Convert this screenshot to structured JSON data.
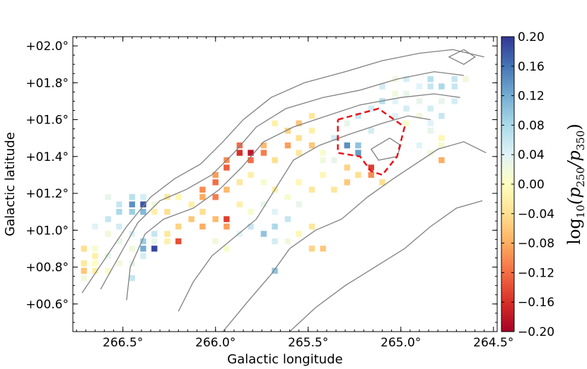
{
  "chart_data": {
    "type": "heatmap",
    "xlabel": "Galactic longitude",
    "ylabel": "Galactic latitude",
    "x_axis_reversed": true,
    "xlim": [
      266.77,
      264.48
    ],
    "ylim": [
      0.45,
      2.05
    ],
    "x_ticks": [
      {
        "value": 266.5,
        "label": "266.5°"
      },
      {
        "value": 266.0,
        "label": "266.0°"
      },
      {
        "value": 265.5,
        "label": "265.5°"
      },
      {
        "value": 265.0,
        "label": "265.0°"
      },
      {
        "value": 264.5,
        "label": "264.5°"
      }
    ],
    "y_ticks": [
      {
        "value": 0.6,
        "label": "+00.6°"
      },
      {
        "value": 0.8,
        "label": "+00.8°"
      },
      {
        "value": 1.0,
        "label": "+01.0°"
      },
      {
        "value": 1.2,
        "label": "+01.2°"
      },
      {
        "value": 1.4,
        "label": "+01.4°"
      },
      {
        "value": 1.6,
        "label": "+01.6°"
      },
      {
        "value": 1.8,
        "label": "+01.8°"
      },
      {
        "value": 2.0,
        "label": "+02.0°"
      }
    ],
    "colorbar": {
      "label_prefix": "log",
      "label_sub": "10",
      "label_expr": "(p",
      "label_sub2": "250",
      "label_mid": "/p",
      "label_sub3": "350",
      "label_end": ")",
      "colormap": "RdYlBu",
      "range": [
        -0.2,
        0.2
      ],
      "ticks": [
        {
          "value": 0.2,
          "label": "0.20"
        },
        {
          "value": 0.16,
          "label": "0.16"
        },
        {
          "value": 0.12,
          "label": "0.12"
        },
        {
          "value": 0.08,
          "label": "0.08"
        },
        {
          "value": 0.04,
          "label": "0.04"
        },
        {
          "value": 0.0,
          "label": "0.00"
        },
        {
          "value": -0.04,
          "label": "−0.04"
        },
        {
          "value": -0.08,
          "label": "−0.08"
        },
        {
          "value": -0.12,
          "label": "−0.12"
        },
        {
          "value": -0.16,
          "label": "−0.16"
        },
        {
          "value": -0.2,
          "label": "−0.20"
        }
      ]
    },
    "cell_size_deg": [
      0.0322,
      0.0322
    ],
    "cells": [
      {
        "l": 264.71,
        "b": 1.78,
        "v": 0.06
      },
      {
        "l": 264.78,
        "b": 1.78,
        "v": 0.08
      },
      {
        "l": 264.84,
        "b": 1.78,
        "v": 0.06
      },
      {
        "l": 264.9,
        "b": 1.78,
        "v": 0.04
      },
      {
        "l": 264.97,
        "b": 1.74,
        "v": 0.03
      },
      {
        "l": 265.03,
        "b": 1.74,
        "v": 0.02
      },
      {
        "l": 265.03,
        "b": 1.7,
        "v": 0.04
      },
      {
        "l": 265.1,
        "b": 1.7,
        "v": 0.07
      },
      {
        "l": 265.16,
        "b": 1.66,
        "v": 0.05
      },
      {
        "l": 264.78,
        "b": 1.7,
        "v": 0.03
      },
      {
        "l": 264.84,
        "b": 1.66,
        "v": 0.05
      },
      {
        "l": 264.9,
        "b": 1.62,
        "v": 0.02
      },
      {
        "l": 264.97,
        "b": 1.58,
        "v": 0.01
      },
      {
        "l": 264.84,
        "b": 1.54,
        "v": 0.03
      },
      {
        "l": 264.78,
        "b": 1.5,
        "v": -0.01
      },
      {
        "l": 264.84,
        "b": 1.42,
        "v": 0.02
      },
      {
        "l": 264.78,
        "b": 1.38,
        "v": -0.08
      },
      {
        "l": 264.9,
        "b": 1.46,
        "v": 0.04
      },
      {
        "l": 265.23,
        "b": 1.62,
        "v": 0.06
      },
      {
        "l": 265.29,
        "b": 1.58,
        "v": 0.03
      },
      {
        "l": 265.16,
        "b": 1.54,
        "v": 0.05
      },
      {
        "l": 265.23,
        "b": 1.46,
        "v": 0.1
      },
      {
        "l": 265.23,
        "b": 1.42,
        "v": 0.13
      },
      {
        "l": 265.29,
        "b": 1.46,
        "v": 0.14
      },
      {
        "l": 265.36,
        "b": 1.5,
        "v": 0.05
      },
      {
        "l": 265.16,
        "b": 1.34,
        "v": -0.15
      },
      {
        "l": 265.16,
        "b": 1.3,
        "v": -0.1
      },
      {
        "l": 265.1,
        "b": 1.26,
        "v": -0.04
      },
      {
        "l": 265.29,
        "b": 1.26,
        "v": -0.06
      },
      {
        "l": 265.36,
        "b": 1.22,
        "v": -0.03
      },
      {
        "l": 265.42,
        "b": 1.3,
        "v": -0.01
      },
      {
        "l": 265.42,
        "b": 1.38,
        "v": 0.02
      },
      {
        "l": 265.48,
        "b": 1.54,
        "v": -0.02
      },
      {
        "l": 265.48,
        "b": 1.62,
        "v": -0.03
      },
      {
        "l": 265.55,
        "b": 1.58,
        "v": -0.06
      },
      {
        "l": 265.55,
        "b": 1.5,
        "v": -0.04
      },
      {
        "l": 265.61,
        "b": 1.46,
        "v": -0.09
      },
      {
        "l": 265.61,
        "b": 1.54,
        "v": -0.05
      },
      {
        "l": 265.68,
        "b": 1.58,
        "v": -0.02
      },
      {
        "l": 265.74,
        "b": 1.46,
        "v": -0.07
      },
      {
        "l": 265.74,
        "b": 1.42,
        "v": -0.11
      },
      {
        "l": 265.68,
        "b": 1.38,
        "v": -0.04
      },
      {
        "l": 265.81,
        "b": 1.42,
        "v": -0.18
      },
      {
        "l": 265.81,
        "b": 1.38,
        "v": -0.12
      },
      {
        "l": 265.87,
        "b": 1.46,
        "v": -0.12
      },
      {
        "l": 265.87,
        "b": 1.42,
        "v": -0.16
      },
      {
        "l": 265.94,
        "b": 1.38,
        "v": -0.1
      },
      {
        "l": 265.94,
        "b": 1.34,
        "v": -0.13
      },
      {
        "l": 266.0,
        "b": 1.3,
        "v": -0.09
      },
      {
        "l": 266.0,
        "b": 1.26,
        "v": -0.12
      },
      {
        "l": 266.07,
        "b": 1.22,
        "v": -0.1
      },
      {
        "l": 266.07,
        "b": 1.18,
        "v": -0.08
      },
      {
        "l": 266.0,
        "b": 1.18,
        "v": -0.11
      },
      {
        "l": 265.94,
        "b": 1.22,
        "v": -0.07
      },
      {
        "l": 265.87,
        "b": 1.26,
        "v": -0.03
      },
      {
        "l": 265.81,
        "b": 1.3,
        "v": -0.02
      },
      {
        "l": 265.74,
        "b": 1.26,
        "v": 0.01
      },
      {
        "l": 265.68,
        "b": 1.22,
        "v": -0.02
      },
      {
        "l": 265.61,
        "b": 1.18,
        "v": 0.01
      },
      {
        "l": 265.55,
        "b": 1.26,
        "v": -0.01
      },
      {
        "l": 265.48,
        "b": 1.22,
        "v": -0.03
      },
      {
        "l": 265.55,
        "b": 1.14,
        "v": 0.03
      },
      {
        "l": 265.61,
        "b": 1.06,
        "v": 0.06
      },
      {
        "l": 265.68,
        "b": 1.02,
        "v": 0.08
      },
      {
        "l": 265.74,
        "b": 0.98,
        "v": 0.1
      },
      {
        "l": 265.68,
        "b": 0.94,
        "v": 0.05
      },
      {
        "l": 265.61,
        "b": 0.94,
        "v": 0.02
      },
      {
        "l": 265.55,
        "b": 0.98,
        "v": -0.01
      },
      {
        "l": 265.48,
        "b": 1.02,
        "v": -0.03
      },
      {
        "l": 265.42,
        "b": 0.9,
        "v": -0.06
      },
      {
        "l": 265.48,
        "b": 0.9,
        "v": -0.05
      },
      {
        "l": 265.81,
        "b": 1.02,
        "v": 0.06
      },
      {
        "l": 265.87,
        "b": 0.98,
        "v": 0.04
      },
      {
        "l": 265.94,
        "b": 1.02,
        "v": -0.09
      },
      {
        "l": 265.94,
        "b": 1.06,
        "v": -0.15
      },
      {
        "l": 266.0,
        "b": 1.06,
        "v": -0.07
      },
      {
        "l": 266.07,
        "b": 1.1,
        "v": -0.04
      },
      {
        "l": 266.13,
        "b": 1.14,
        "v": -0.02
      },
      {
        "l": 266.2,
        "b": 1.18,
        "v": -0.01
      },
      {
        "l": 266.13,
        "b": 1.06,
        "v": -0.06
      },
      {
        "l": 266.2,
        "b": 1.02,
        "v": -0.05
      },
      {
        "l": 266.26,
        "b": 0.98,
        "v": -0.03
      },
      {
        "l": 266.2,
        "b": 0.94,
        "v": -0.14
      },
      {
        "l": 266.26,
        "b": 0.94,
        "v": -0.02
      },
      {
        "l": 266.33,
        "b": 0.94,
        "v": 0.03
      },
      {
        "l": 266.33,
        "b": 0.98,
        "v": 0.06
      },
      {
        "l": 266.39,
        "b": 0.94,
        "v": 0.09
      },
      {
        "l": 266.33,
        "b": 0.9,
        "v": 0.19
      },
      {
        "l": 266.39,
        "b": 0.9,
        "v": 0.12
      },
      {
        "l": 266.45,
        "b": 0.98,
        "v": 0.04
      },
      {
        "l": 266.45,
        "b": 0.9,
        "v": 0.02
      },
      {
        "l": 266.52,
        "b": 0.94,
        "v": 0.03
      },
      {
        "l": 266.52,
        "b": 1.02,
        "v": 0.05
      },
      {
        "l": 266.58,
        "b": 0.98,
        "v": 0.02
      },
      {
        "l": 266.58,
        "b": 1.06,
        "v": 0.06
      },
      {
        "l": 266.52,
        "b": 1.1,
        "v": 0.08
      },
      {
        "l": 266.45,
        "b": 1.14,
        "v": 0.14
      },
      {
        "l": 266.39,
        "b": 1.14,
        "v": 0.18
      },
      {
        "l": 266.39,
        "b": 1.1,
        "v": 0.11
      },
      {
        "l": 266.45,
        "b": 1.1,
        "v": 0.09
      },
      {
        "l": 266.52,
        "b": 1.14,
        "v": 0.06
      },
      {
        "l": 266.58,
        "b": 1.18,
        "v": 0.03
      },
      {
        "l": 266.45,
        "b": 1.18,
        "v": 0.07
      },
      {
        "l": 266.39,
        "b": 1.18,
        "v": 0.05
      },
      {
        "l": 266.33,
        "b": 1.14,
        "v": 0.02
      },
      {
        "l": 266.33,
        "b": 1.1,
        "v": -0.02
      },
      {
        "l": 266.26,
        "b": 1.1,
        "v": -0.04
      },
      {
        "l": 266.26,
        "b": 1.18,
        "v": -0.03
      },
      {
        "l": 266.65,
        "b": 1.02,
        "v": 0.04
      },
      {
        "l": 266.65,
        "b": 0.9,
        "v": 0.01
      },
      {
        "l": 266.58,
        "b": 0.86,
        "v": 0.03
      },
      {
        "l": 266.65,
        "b": 0.82,
        "v": 0.0
      },
      {
        "l": 266.71,
        "b": 0.82,
        "v": -0.03
      },
      {
        "l": 266.71,
        "b": 0.78,
        "v": -0.06
      },
      {
        "l": 266.65,
        "b": 0.78,
        "v": -0.02
      },
      {
        "l": 266.58,
        "b": 0.78,
        "v": 0.01
      },
      {
        "l": 266.52,
        "b": 0.82,
        "v": 0.02
      },
      {
        "l": 266.45,
        "b": 0.82,
        "v": 0.03
      },
      {
        "l": 266.39,
        "b": 0.86,
        "v": 0.05
      },
      {
        "l": 266.45,
        "b": 0.74,
        "v": 0.06
      },
      {
        "l": 266.71,
        "b": 0.74,
        "v": 0.02
      },
      {
        "l": 266.65,
        "b": 0.86,
        "v": -0.02
      },
      {
        "l": 266.71,
        "b": 0.9,
        "v": -0.04
      },
      {
        "l": 266.0,
        "b": 0.94,
        "v": 0.02
      },
      {
        "l": 265.94,
        "b": 0.9,
        "v": 0.01
      },
      {
        "l": 266.07,
        "b": 1.02,
        "v": -0.08
      },
      {
        "l": 265.68,
        "b": 0.78,
        "v": 0.1
      },
      {
        "l": 265.81,
        "b": 1.1,
        "v": 0.01
      },
      {
        "l": 265.87,
        "b": 1.14,
        "v": -0.02
      },
      {
        "l": 265.74,
        "b": 1.14,
        "v": 0.03
      },
      {
        "l": 265.68,
        "b": 1.1,
        "v": 0.04
      },
      {
        "l": 265.55,
        "b": 1.42,
        "v": -0.03
      },
      {
        "l": 265.48,
        "b": 1.46,
        "v": -0.06
      },
      {
        "l": 265.42,
        "b": 1.42,
        "v": 0.01
      },
      {
        "l": 265.36,
        "b": 1.38,
        "v": 0.03
      },
      {
        "l": 265.29,
        "b": 1.34,
        "v": -0.05
      },
      {
        "l": 265.23,
        "b": 1.3,
        "v": -0.04
      },
      {
        "l": 265.03,
        "b": 1.62,
        "v": 0.04
      },
      {
        "l": 264.97,
        "b": 1.66,
        "v": 0.05
      },
      {
        "l": 264.9,
        "b": 1.7,
        "v": 0.03
      },
      {
        "l": 264.71,
        "b": 1.7,
        "v": 0.05
      },
      {
        "l": 264.78,
        "b": 1.62,
        "v": 0.06
      },
      {
        "l": 264.84,
        "b": 1.58,
        "v": 0.04
      },
      {
        "l": 264.78,
        "b": 1.46,
        "v": 0.01
      },
      {
        "l": 265.1,
        "b": 1.78,
        "v": 0.05
      },
      {
        "l": 265.03,
        "b": 1.82,
        "v": 0.02
      },
      {
        "l": 264.71,
        "b": 1.82,
        "v": 0.06
      },
      {
        "l": 264.65,
        "b": 1.82,
        "v": 0.02
      },
      {
        "l": 264.97,
        "b": 1.82,
        "v": 0.05
      },
      {
        "l": 264.84,
        "b": 1.82,
        "v": 0.07
      }
    ],
    "contours": [
      [
        [
          266.72,
          0.66
        ],
        [
          266.6,
          0.84
        ],
        [
          266.48,
          1.02
        ],
        [
          266.35,
          1.18
        ],
        [
          266.22,
          1.28
        ],
        [
          266.08,
          1.36
        ],
        [
          265.96,
          1.48
        ],
        [
          265.85,
          1.6
        ],
        [
          265.7,
          1.72
        ],
        [
          265.52,
          1.8
        ],
        [
          265.3,
          1.86
        ],
        [
          265.1,
          1.92
        ],
        [
          264.9,
          1.96
        ],
        [
          264.72,
          1.98
        ],
        [
          264.55,
          1.94
        ]
      ],
      [
        [
          266.62,
          0.68
        ],
        [
          266.52,
          0.86
        ],
        [
          266.42,
          1.04
        ],
        [
          266.3,
          1.16
        ],
        [
          266.16,
          1.22
        ],
        [
          266.02,
          1.3
        ],
        [
          265.9,
          1.42
        ],
        [
          265.78,
          1.56
        ],
        [
          265.62,
          1.66
        ],
        [
          265.42,
          1.72
        ],
        [
          265.22,
          1.76
        ],
        [
          265.02,
          1.82
        ],
        [
          264.82,
          1.86
        ],
        [
          264.66,
          1.84
        ]
      ],
      [
        [
          266.48,
          0.62
        ],
        [
          266.46,
          0.8
        ],
        [
          266.38,
          0.98
        ],
        [
          266.28,
          1.06
        ],
        [
          266.12,
          1.12
        ],
        [
          265.98,
          1.22
        ],
        [
          265.86,
          1.34
        ],
        [
          265.74,
          1.48
        ],
        [
          265.58,
          1.56
        ],
        [
          265.4,
          1.62
        ],
        [
          265.22,
          1.68
        ],
        [
          265.0,
          1.72
        ],
        [
          264.82,
          1.74
        ],
        [
          264.68,
          1.72
        ]
      ],
      [
        [
          266.2,
          0.56
        ],
        [
          266.12,
          0.72
        ],
        [
          266.02,
          0.86
        ],
        [
          265.9,
          0.96
        ],
        [
          265.78,
          1.06
        ],
        [
          265.68,
          1.22
        ],
        [
          265.58,
          1.38
        ],
        [
          265.44,
          1.46
        ],
        [
          265.28,
          1.52
        ],
        [
          265.1,
          1.58
        ],
        [
          264.96,
          1.62
        ],
        [
          264.84,
          1.6
        ]
      ],
      [
        [
          265.96,
          0.45
        ],
        [
          265.82,
          0.62
        ],
        [
          265.7,
          0.76
        ],
        [
          265.6,
          0.9
        ],
        [
          265.46,
          1.0
        ],
        [
          265.32,
          1.06
        ],
        [
          265.18,
          1.18
        ],
        [
          265.04,
          1.28
        ],
        [
          264.92,
          1.36
        ],
        [
          264.8,
          1.44
        ],
        [
          264.66,
          1.48
        ],
        [
          264.54,
          1.42
        ]
      ],
      [
        [
          265.6,
          0.45
        ],
        [
          265.46,
          0.58
        ],
        [
          265.3,
          0.7
        ],
        [
          265.14,
          0.8
        ],
        [
          264.98,
          0.9
        ],
        [
          264.84,
          1.02
        ],
        [
          264.7,
          1.12
        ],
        [
          264.56,
          1.16
        ]
      ],
      [
        [
          265.06,
          1.5
        ],
        [
          265.16,
          1.44
        ],
        [
          265.12,
          1.38
        ],
        [
          265.02,
          1.4
        ],
        [
          265.0,
          1.46
        ],
        [
          265.06,
          1.5
        ]
      ],
      [
        [
          264.66,
          1.98
        ],
        [
          264.6,
          1.94
        ],
        [
          264.66,
          1.9
        ],
        [
          264.74,
          1.94
        ],
        [
          264.66,
          1.98
        ]
      ]
    ],
    "region_polygon": [
      [
        265.34,
        1.6
      ],
      [
        265.12,
        1.66
      ],
      [
        264.98,
        1.56
      ],
      [
        265.02,
        1.4
      ],
      [
        265.1,
        1.3
      ],
      [
        265.16,
        1.32
      ],
      [
        265.22,
        1.4
      ],
      [
        265.34,
        1.42
      ],
      [
        265.34,
        1.6
      ]
    ]
  }
}
